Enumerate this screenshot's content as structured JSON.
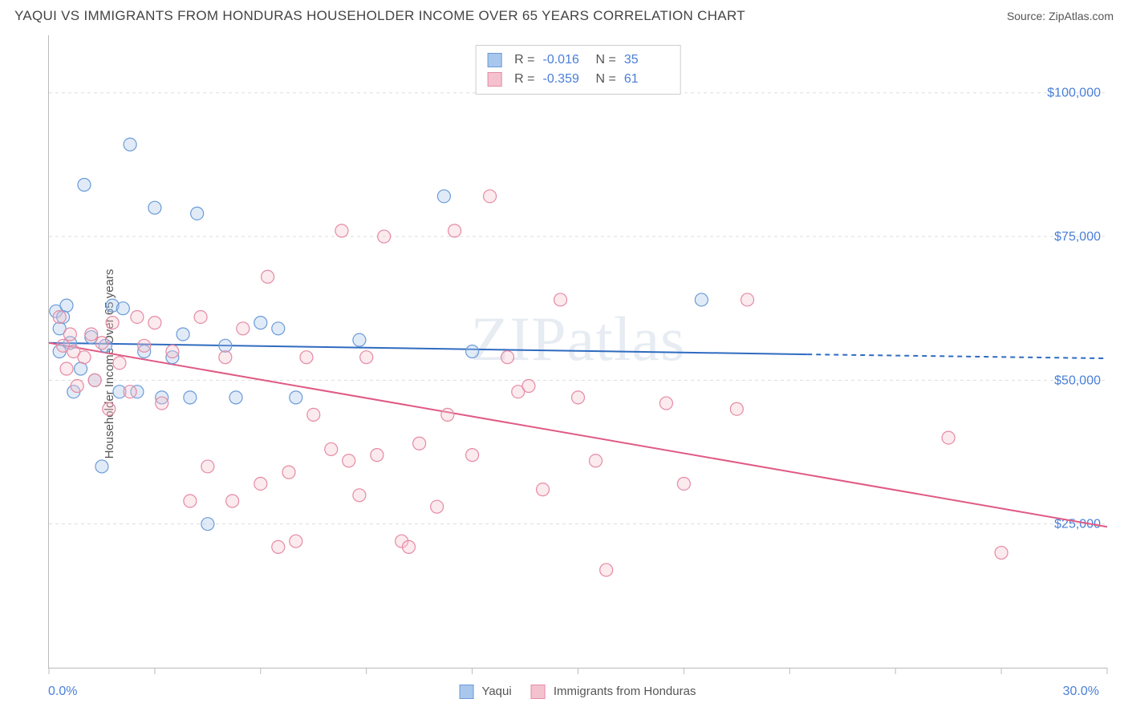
{
  "title": "YAQUI VS IMMIGRANTS FROM HONDURAS HOUSEHOLDER INCOME OVER 65 YEARS CORRELATION CHART",
  "source": "Source: ZipAtlas.com",
  "watermark": "ZIPatlas",
  "y_axis_label": "Householder Income Over 65 years",
  "chart": {
    "type": "scatter-correlation",
    "xlim": [
      0,
      30
    ],
    "ylim": [
      0,
      110000
    ],
    "x_tick_positions": [
      0,
      3,
      6,
      9,
      12,
      15,
      18,
      21,
      24,
      27,
      30
    ],
    "x_labels": {
      "min": "0.0%",
      "max": "30.0%"
    },
    "y_gridlines": [
      25000,
      50000,
      75000,
      100000
    ],
    "y_labels": [
      "$25,000",
      "$50,000",
      "$75,000",
      "$100,000"
    ],
    "background_color": "#ffffff",
    "grid_color": "#dddddd",
    "axis_color": "#bbbbbb",
    "label_color": "#4a7fd8",
    "marker_radius": 8,
    "marker_fill_opacity": 0.35,
    "marker_stroke_width": 1.2,
    "line_width": 2,
    "series": [
      {
        "name": "Yaqui",
        "color_fill": "#a9c7ec",
        "color_stroke": "#6a9bd8",
        "line_color": "#2f6bc0",
        "R": "-0.016",
        "N": "35",
        "regression": {
          "x1": 0,
          "y1": 56500,
          "x2": 21.5,
          "y2": 54500,
          "x3": 30,
          "y3": 53800,
          "dash_after_x": 21.5
        },
        "points": [
          [
            0.2,
            62000
          ],
          [
            0.3,
            59000
          ],
          [
            0.3,
            55000
          ],
          [
            0.5,
            63000
          ],
          [
            0.6,
            56500
          ],
          [
            0.7,
            48000
          ],
          [
            1.0,
            84000
          ],
          [
            1.3,
            50000
          ],
          [
            1.5,
            35000
          ],
          [
            1.6,
            56000
          ],
          [
            1.8,
            63000
          ],
          [
            2.0,
            48000
          ],
          [
            2.3,
            91000
          ],
          [
            2.5,
            48000
          ],
          [
            2.7,
            55000
          ],
          [
            3.0,
            80000
          ],
          [
            3.2,
            47000
          ],
          [
            3.5,
            54000
          ],
          [
            4.0,
            47000
          ],
          [
            4.2,
            79000
          ],
          [
            4.5,
            25000
          ],
          [
            5.0,
            56000
          ],
          [
            5.3,
            47000
          ],
          [
            6.0,
            60000
          ],
          [
            6.5,
            59000
          ],
          [
            7.0,
            47000
          ],
          [
            8.8,
            57000
          ],
          [
            11.2,
            82000
          ],
          [
            12.0,
            55000
          ],
          [
            18.5,
            64000
          ],
          [
            0.4,
            61000
          ],
          [
            1.2,
            57500
          ],
          [
            2.1,
            62500
          ],
          [
            0.9,
            52000
          ],
          [
            3.8,
            58000
          ]
        ]
      },
      {
        "name": "Immigrants from Honduras",
        "color_fill": "#f4c2cf",
        "color_stroke": "#e68aa3",
        "line_color": "#e05a84",
        "R": "-0.359",
        "N": "61",
        "regression": {
          "x1": 0,
          "y1": 56500,
          "x2": 30,
          "y2": 24500,
          "dash_after_x": 999
        },
        "points": [
          [
            0.3,
            61000
          ],
          [
            0.4,
            56000
          ],
          [
            0.5,
            52000
          ],
          [
            0.7,
            55000
          ],
          [
            0.8,
            49000
          ],
          [
            1.0,
            54000
          ],
          [
            1.2,
            58000
          ],
          [
            1.3,
            50000
          ],
          [
            1.5,
            56500
          ],
          [
            1.7,
            45000
          ],
          [
            1.8,
            60000
          ],
          [
            2.0,
            53000
          ],
          [
            2.3,
            48000
          ],
          [
            2.5,
            61000
          ],
          [
            2.7,
            56000
          ],
          [
            3.0,
            60000
          ],
          [
            3.2,
            46000
          ],
          [
            3.5,
            55000
          ],
          [
            4.0,
            29000
          ],
          [
            4.3,
            61000
          ],
          [
            4.5,
            35000
          ],
          [
            5.0,
            54000
          ],
          [
            5.2,
            29000
          ],
          [
            5.5,
            59000
          ],
          [
            6.0,
            32000
          ],
          [
            6.2,
            68000
          ],
          [
            6.5,
            21000
          ],
          [
            6.8,
            34000
          ],
          [
            7.0,
            22000
          ],
          [
            7.3,
            54000
          ],
          [
            7.5,
            44000
          ],
          [
            8.0,
            38000
          ],
          [
            8.3,
            76000
          ],
          [
            8.5,
            36000
          ],
          [
            8.8,
            30000
          ],
          [
            9.0,
            54000
          ],
          [
            9.3,
            37000
          ],
          [
            9.5,
            75000
          ],
          [
            10.0,
            22000
          ],
          [
            10.2,
            21000
          ],
          [
            10.5,
            39000
          ],
          [
            11.0,
            28000
          ],
          [
            11.3,
            44000
          ],
          [
            11.5,
            76000
          ],
          [
            12.0,
            37000
          ],
          [
            12.5,
            82000
          ],
          [
            13.0,
            54000
          ],
          [
            13.3,
            48000
          ],
          [
            13.6,
            49000
          ],
          [
            14.0,
            31000
          ],
          [
            14.5,
            64000
          ],
          [
            15.0,
            47000
          ],
          [
            15.5,
            36000
          ],
          [
            15.8,
            17000
          ],
          [
            17.5,
            46000
          ],
          [
            18.0,
            32000
          ],
          [
            19.5,
            45000
          ],
          [
            19.8,
            64000
          ],
          [
            25.5,
            40000
          ],
          [
            27.0,
            20000
          ],
          [
            0.6,
            58000
          ]
        ]
      }
    ]
  },
  "bottom_legend": [
    {
      "label": "Yaqui",
      "fill": "#a9c7ec",
      "stroke": "#6a9bd8"
    },
    {
      "label": "Immigrants from Honduras",
      "fill": "#f4c2cf",
      "stroke": "#e68aa3"
    }
  ]
}
